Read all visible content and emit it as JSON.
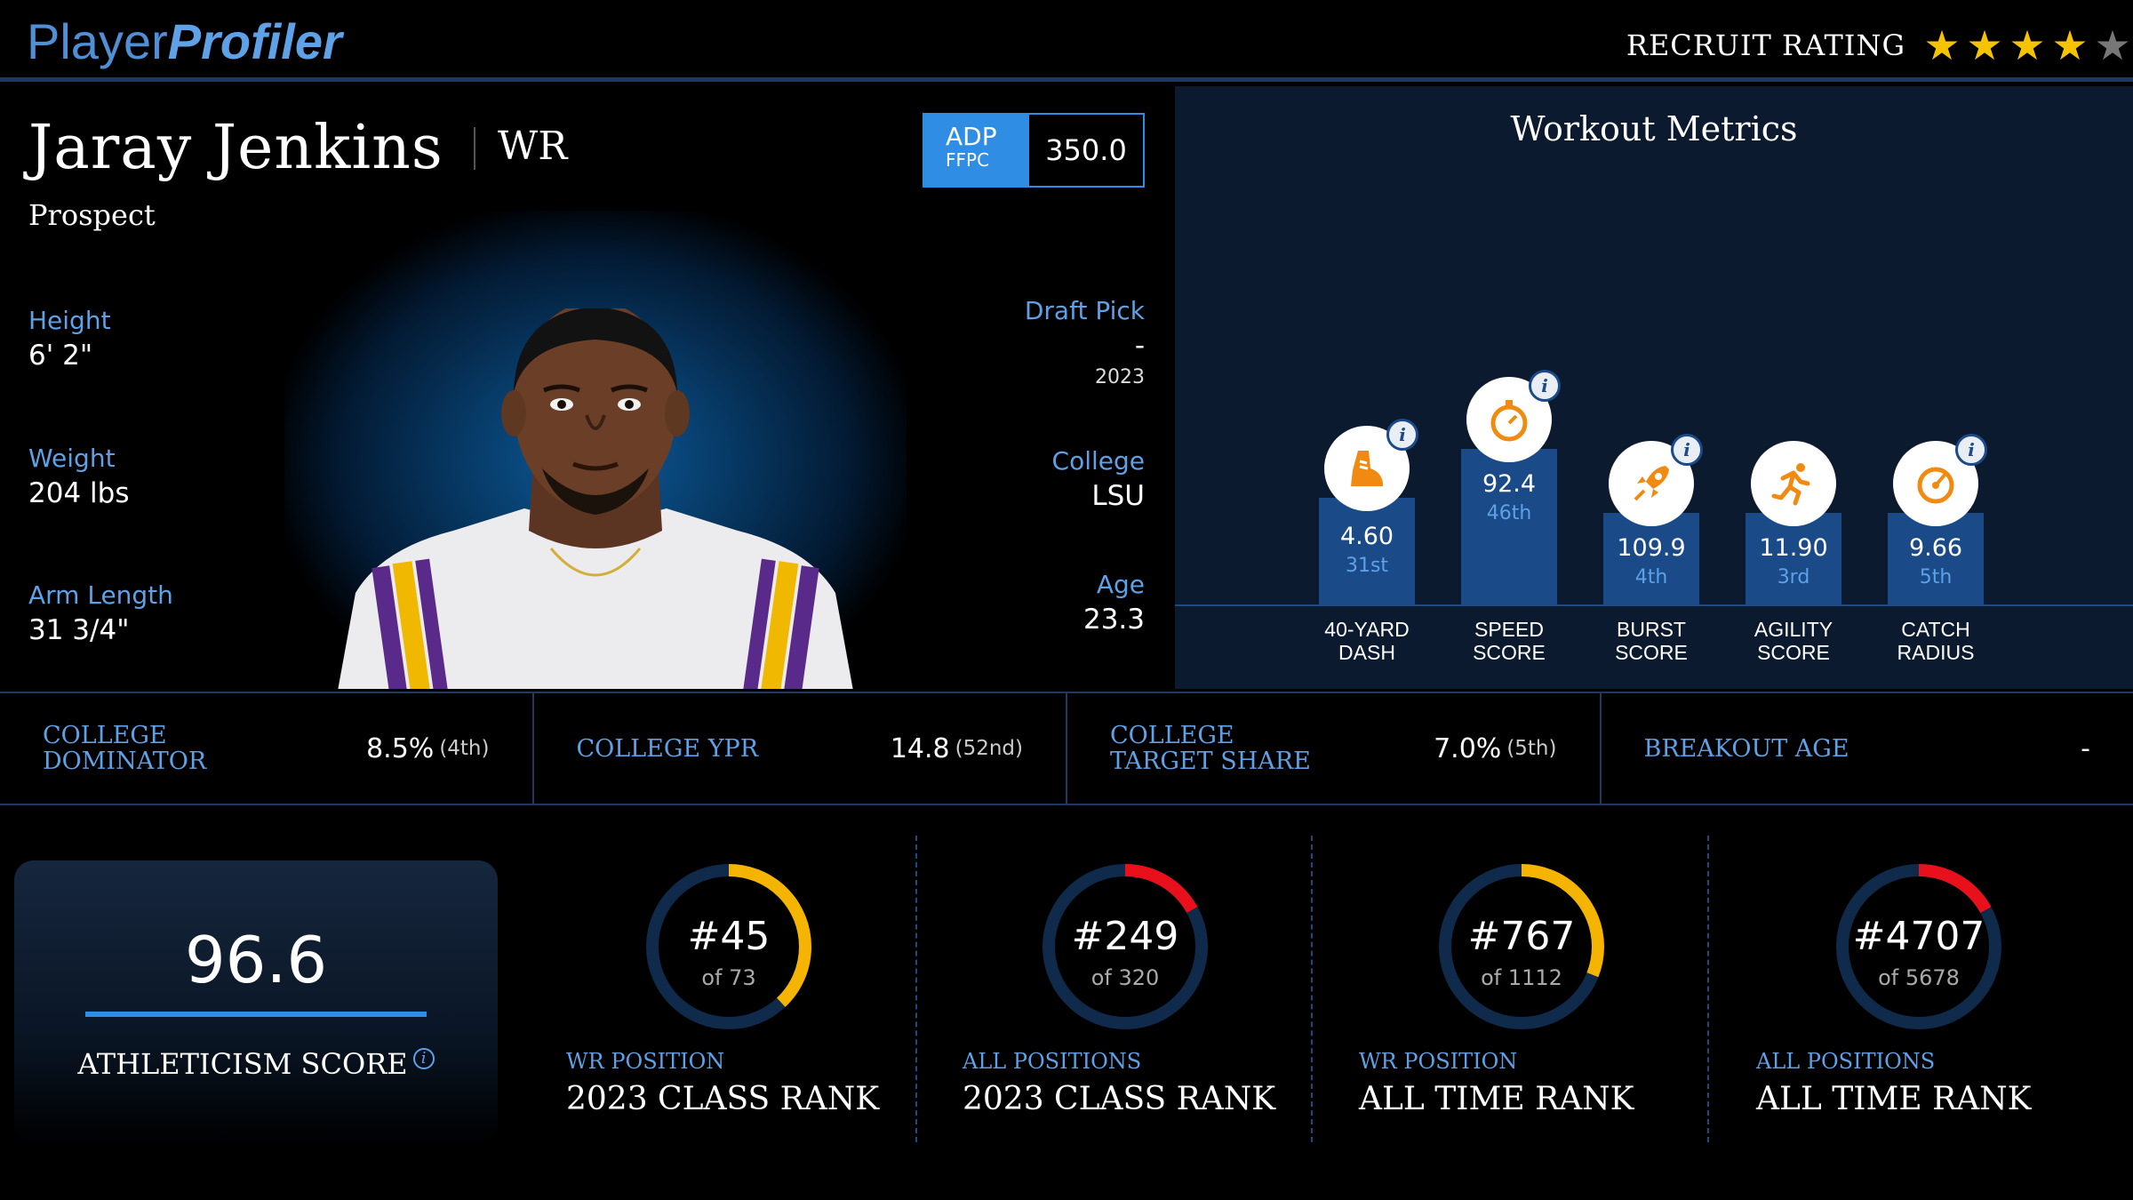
{
  "header": {
    "logo_part1": "Player",
    "logo_part2": "Profiler",
    "recruit_label": "RECRUIT RATING",
    "recruit_stars": 4,
    "recruit_stars_max": 5
  },
  "player": {
    "name": "Jaray Jenkins",
    "position": "WR",
    "status": "Prospect",
    "adp": {
      "label": "ADP",
      "source": "FFPC",
      "value": "350.0"
    },
    "left_stats": [
      {
        "label": "Height",
        "value": "6' 2\""
      },
      {
        "label": "Weight",
        "value": "204 lbs"
      },
      {
        "label": "Arm Length",
        "value": "31 3/4\""
      }
    ],
    "draft": {
      "label": "Draft Pick",
      "value": "-",
      "year": "2023"
    },
    "college": {
      "label": "College",
      "value": "LSU"
    },
    "age": {
      "label": "Age",
      "value": "23.3"
    }
  },
  "workout": {
    "title": "Workout Metrics",
    "metrics": [
      {
        "value": "4.60",
        "rank": "31st",
        "label_line1": "40-YARD",
        "label_line2": "DASH",
        "icon": "shoe-icon"
      },
      {
        "value": "92.4",
        "rank": "46th",
        "label_line1": "SPEED",
        "label_line2": "SCORE",
        "icon": "stopwatch-icon"
      },
      {
        "value": "109.9",
        "rank": "4th",
        "label_line1": "BURST",
        "label_line2": "SCORE",
        "icon": "rocket-icon"
      },
      {
        "value": "11.90",
        "rank": "3rd",
        "label_line1": "AGILITY",
        "label_line2": "SCORE",
        "icon": "runner-icon"
      },
      {
        "value": "9.66",
        "rank": "5th",
        "label_line1": "CATCH",
        "label_line2": "RADIUS",
        "icon": "target-icon"
      }
    ]
  },
  "college_stats": [
    {
      "label": "COLLEGE DOMINATOR",
      "value": "8.5%",
      "rank": "(4th)"
    },
    {
      "label": "COLLEGE YPR",
      "value": "14.8",
      "rank": "(52nd)"
    },
    {
      "label": "COLLEGE TARGET SHARE",
      "value": "7.0%",
      "rank": "(5th)"
    },
    {
      "label": "BREAKOUT AGE",
      "value": "-",
      "rank": ""
    }
  ],
  "athleticism": {
    "score": "96.6",
    "label": "ATHLETICISM SCORE",
    "info": "i"
  },
  "ranks": [
    {
      "rank": "#45",
      "of": "of 73",
      "sub": "WR POSITION",
      "title": "2023 CLASS RANK",
      "color": "#f5b400",
      "fraction": 0.38
    },
    {
      "rank": "#249",
      "of": "of 320",
      "sub": "ALL POSITIONS",
      "title": "2023 CLASS RANK",
      "color": "#e8101a",
      "fraction": 0.17
    },
    {
      "rank": "#767",
      "of": "of 1112",
      "sub": "WR POSITION",
      "title": "ALL TIME RANK",
      "color": "#f5b400",
      "fraction": 0.31
    },
    {
      "rank": "#4707",
      "of": "of 5678",
      "sub": "ALL POSITIONS",
      "title": "ALL TIME RANK",
      "color": "#e8101a",
      "fraction": 0.17
    }
  ]
}
